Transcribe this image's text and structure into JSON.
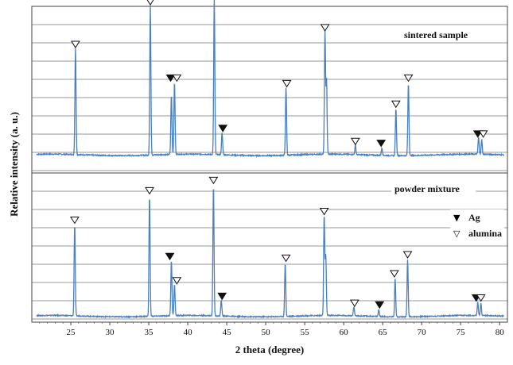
{
  "chart_data": {
    "type": "line",
    "title": "",
    "xlabel": "2 theta (degree)",
    "ylabel": "Relative intensity (a. u.)",
    "xlim": [
      20,
      81
    ],
    "x_ticks": [
      25,
      30,
      35,
      40,
      45,
      50,
      55,
      60,
      65,
      70,
      75,
      80
    ],
    "grid": true,
    "line_color": "#4a7fc1",
    "panels": [
      {
        "name": "sintered sample",
        "peaks": [
          {
            "x": 25.6,
            "y": 0.57
          },
          {
            "x": 35.2,
            "y": 0.8
          },
          {
            "x": 37.9,
            "y": 0.32
          },
          {
            "x": 38.3,
            "y": 0.39
          },
          {
            "x": 43.4,
            "y": 0.84
          },
          {
            "x": 44.4,
            "y": 0.12
          },
          {
            "x": 52.6,
            "y": 0.36
          },
          {
            "x": 57.6,
            "y": 0.66
          },
          {
            "x": 57.8,
            "y": 0.4
          },
          {
            "x": 61.5,
            "y": 0.05
          },
          {
            "x": 64.9,
            "y": 0.04
          },
          {
            "x": 66.7,
            "y": 0.25
          },
          {
            "x": 68.3,
            "y": 0.39
          },
          {
            "x": 77.3,
            "y": 0.09
          },
          {
            "x": 77.7,
            "y": 0.08
          }
        ],
        "markers": [
          {
            "x": 25.6,
            "phase": "alumina"
          },
          {
            "x": 35.2,
            "phase": "alumina"
          },
          {
            "x": 37.8,
            "phase": "Ag"
          },
          {
            "x": 38.6,
            "phase": "alumina"
          },
          {
            "x": 43.4,
            "phase": "alumina"
          },
          {
            "x": 44.5,
            "phase": "Ag"
          },
          {
            "x": 52.7,
            "phase": "alumina"
          },
          {
            "x": 57.6,
            "phase": "alumina"
          },
          {
            "x": 61.5,
            "phase": "alumina"
          },
          {
            "x": 64.8,
            "phase": "Ag"
          },
          {
            "x": 66.7,
            "phase": "alumina"
          },
          {
            "x": 68.3,
            "phase": "alumina"
          },
          {
            "x": 77.2,
            "phase": "Ag"
          },
          {
            "x": 77.9,
            "phase": "alumina"
          }
        ]
      },
      {
        "name": "powder mixture",
        "peaks": [
          {
            "x": 25.5,
            "y": 0.53
          },
          {
            "x": 35.1,
            "y": 0.7
          },
          {
            "x": 37.9,
            "y": 0.32
          },
          {
            "x": 38.3,
            "y": 0.18
          },
          {
            "x": 43.3,
            "y": 0.76
          },
          {
            "x": 44.3,
            "y": 0.09
          },
          {
            "x": 52.5,
            "y": 0.31
          },
          {
            "x": 57.5,
            "y": 0.58
          },
          {
            "x": 57.7,
            "y": 0.35
          },
          {
            "x": 61.3,
            "y": 0.05
          },
          {
            "x": 64.5,
            "y": 0.04
          },
          {
            "x": 66.6,
            "y": 0.22
          },
          {
            "x": 68.2,
            "y": 0.33
          },
          {
            "x": 77.2,
            "y": 0.08
          },
          {
            "x": 77.6,
            "y": 0.07
          }
        ],
        "markers": [
          {
            "x": 25.5,
            "phase": "alumina"
          },
          {
            "x": 35.1,
            "phase": "alumina"
          },
          {
            "x": 37.7,
            "phase": "Ag"
          },
          {
            "x": 38.6,
            "phase": "alumina"
          },
          {
            "x": 43.3,
            "phase": "alumina"
          },
          {
            "x": 44.4,
            "phase": "Ag"
          },
          {
            "x": 52.6,
            "phase": "alumina"
          },
          {
            "x": 57.5,
            "phase": "alumina"
          },
          {
            "x": 61.4,
            "phase": "alumina"
          },
          {
            "x": 64.6,
            "phase": "Ag"
          },
          {
            "x": 66.5,
            "phase": "alumina"
          },
          {
            "x": 68.2,
            "phase": "alumina"
          },
          {
            "x": 77.0,
            "phase": "Ag"
          },
          {
            "x": 77.6,
            "phase": "alumina"
          }
        ]
      }
    ],
    "legend": {
      "placement": "right",
      "entries": [
        {
          "symbol": "▼",
          "label": "Ag"
        },
        {
          "symbol": "▽",
          "label": "alumina"
        }
      ]
    }
  }
}
